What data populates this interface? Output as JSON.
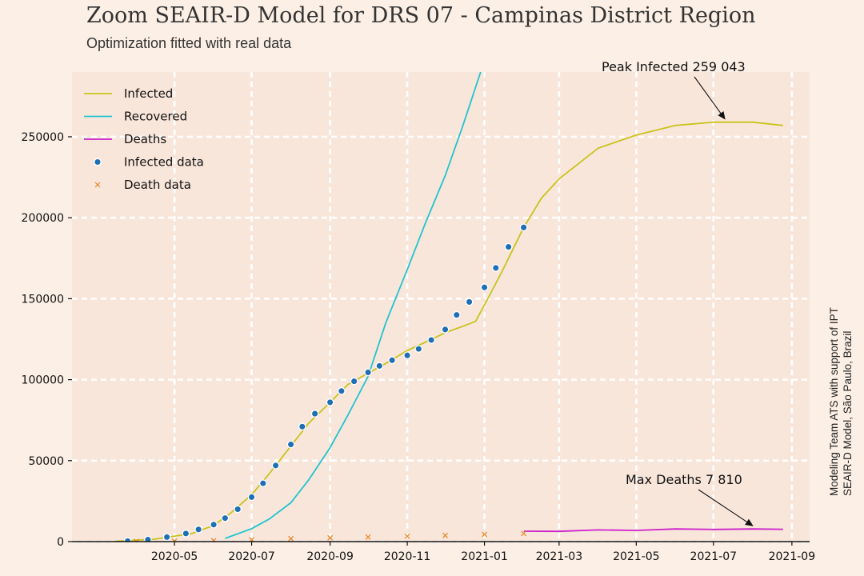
{
  "title": "Zoom SEAIR-D Model for DRS 07 - Campinas District Region",
  "subtitle": "Optimization fitted with real data",
  "side_note": [
    "Modeling Team ATS with support of IPT",
    "SEAIR-D Model, São Paulo, Brazil"
  ],
  "colors": {
    "background": "#fcefe5",
    "plot_area": "#f9e6db",
    "grid": "#ffffff",
    "infected": "#c8c31a",
    "recovered": "#1fc4cf",
    "deaths": "#cc22cc",
    "infected_data": "#1f6fb5",
    "death_data": "#e8841f"
  },
  "chart_data": {
    "type": "line",
    "title": "Zoom SEAIR-D Model for DRS 07 - Campinas District Region",
    "subtitle": "Optimization fitted with real data",
    "xlabel": "",
    "ylabel": "",
    "xlim": [
      "2020-02-10",
      "2021-09-15"
    ],
    "ylim": [
      0,
      290000
    ],
    "grid": true,
    "legend_position": "top-left",
    "x_ticks": [
      "2020-05",
      "2020-07",
      "2020-09",
      "2020-11",
      "2021-01",
      "2021-03",
      "2021-05",
      "2021-07",
      "2021-09"
    ],
    "y_ticks": [
      0,
      50000,
      100000,
      150000,
      200000,
      250000
    ],
    "series": [
      {
        "name": "Infected",
        "style": "line",
        "x": [
          "2020-03-15",
          "2020-04-15",
          "2020-05-15",
          "2020-06-01",
          "2020-06-15",
          "2020-07-01",
          "2020-07-15",
          "2020-08-01",
          "2020-08-15",
          "2020-09-01",
          "2020-09-15",
          "2020-10-01",
          "2020-10-15",
          "2020-11-01",
          "2020-11-15",
          "2020-12-01",
          "2020-12-15",
          "2020-12-25",
          "2021-01-05",
          "2021-01-15",
          "2021-02-01",
          "2021-02-15",
          "2021-03-01",
          "2021-04-01",
          "2021-05-01",
          "2021-06-01",
          "2021-07-01",
          "2021-08-01",
          "2021-08-25"
        ],
        "y": [
          200,
          1500,
          5000,
          10000,
          18000,
          29000,
          42000,
          59000,
          73000,
          86000,
          97000,
          104000,
          110000,
          118000,
          123000,
          129000,
          133000,
          136000,
          152000,
          167000,
          194000,
          212000,
          224000,
          243000,
          251000,
          257000,
          259000,
          259043,
          257000
        ]
      },
      {
        "name": "Recovered",
        "style": "line",
        "x": [
          "2020-06-10",
          "2020-07-01",
          "2020-07-15",
          "2020-08-01",
          "2020-08-15",
          "2020-09-01",
          "2020-09-15",
          "2020-10-01",
          "2020-10-15",
          "2020-11-01",
          "2020-11-15",
          "2020-12-01",
          "2020-12-15",
          "2020-12-29"
        ],
        "y": [
          2000,
          8000,
          14000,
          24000,
          38000,
          58000,
          78000,
          102000,
          135000,
          168000,
          196000,
          226000,
          257000,
          290000
        ]
      },
      {
        "name": "Deaths",
        "style": "line",
        "x": [
          "2021-02-01",
          "2021-03-01",
          "2021-04-01",
          "2021-05-01",
          "2021-06-01",
          "2021-07-01",
          "2021-08-01",
          "2021-08-25"
        ],
        "y": [
          6400,
          6300,
          7200,
          6900,
          7800,
          7500,
          7810,
          7600
        ]
      },
      {
        "name": "Infected data",
        "style": "scatter",
        "x": [
          "2020-03-25",
          "2020-04-10",
          "2020-04-25",
          "2020-05-10",
          "2020-05-20",
          "2020-06-01",
          "2020-06-10",
          "2020-06-20",
          "2020-07-01",
          "2020-07-10",
          "2020-07-20",
          "2020-08-01",
          "2020-08-10",
          "2020-08-20",
          "2020-09-01",
          "2020-09-10",
          "2020-09-20",
          "2020-10-01",
          "2020-10-10",
          "2020-10-20",
          "2020-11-01",
          "2020-11-10",
          "2020-11-20",
          "2020-12-01",
          "2020-12-10",
          "2020-12-20",
          "2021-01-01",
          "2021-01-10",
          "2021-01-20",
          "2021-02-01"
        ],
        "y": [
          300,
          1200,
          2800,
          5000,
          7500,
          10500,
          14500,
          20000,
          27500,
          36000,
          47000,
          60000,
          71000,
          79000,
          86000,
          93000,
          99000,
          104500,
          108500,
          112000,
          115000,
          119000,
          124500,
          131000,
          140000,
          148000,
          157000,
          169000,
          182000,
          194000
        ]
      },
      {
        "name": "Death data",
        "style": "scatter",
        "x": [
          "2020-04-01",
          "2020-05-01",
          "2020-06-01",
          "2020-07-01",
          "2020-08-01",
          "2020-09-01",
          "2020-10-01",
          "2020-11-01",
          "2020-12-01",
          "2021-01-01",
          "2021-02-01"
        ],
        "y": [
          100,
          300,
          600,
          1200,
          1800,
          2300,
          2800,
          3300,
          3800,
          4400,
          5000
        ]
      }
    ],
    "annotations": [
      {
        "text": "Peak Infected 259 043",
        "x": "2021-07-10",
        "y": 259043
      },
      {
        "text": "Max Deaths 7 810",
        "x": "2021-08-01",
        "y": 7810
      }
    ]
  }
}
